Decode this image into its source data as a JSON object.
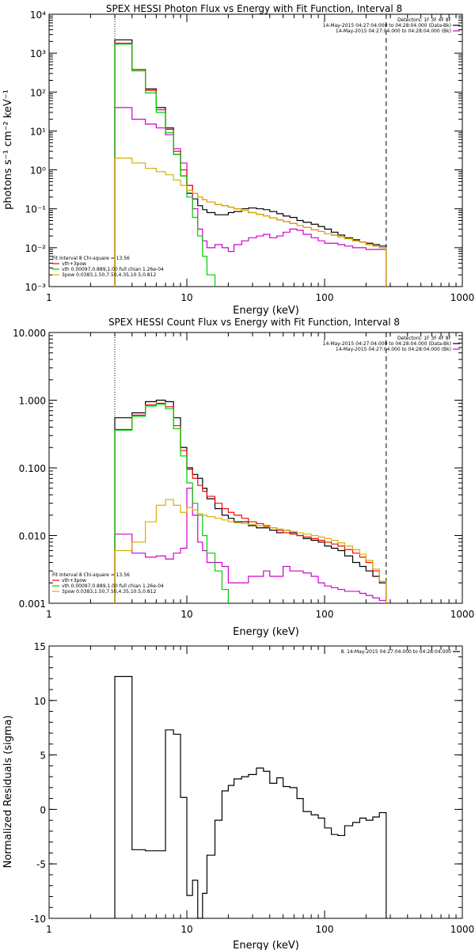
{
  "chart_data": [
    {
      "type": "line",
      "title": "SPEX HESSI Photon Flux vs Energy with Fit Function, Interval 8",
      "xlabel": "Energy (keV)",
      "ylabel": "photons s⁻¹ cm⁻² keV⁻¹",
      "xscale": "log",
      "yscale": "log",
      "xlim": [
        1,
        1000
      ],
      "ylim": [
        0.001,
        10000
      ],
      "xticks": [
        1,
        10,
        100,
        1000
      ],
      "xtick_labels": [
        "1",
        "10",
        "100",
        "1000"
      ],
      "yticks": [
        0.001,
        0.01,
        0.1,
        1,
        10,
        100,
        1000,
        10000
      ],
      "ytick_labels": [
        "10⁻³",
        "10⁻²",
        "10⁻¹",
        "10⁰",
        "10¹",
        "10²",
        "10³",
        "10⁴"
      ],
      "vlines": [
        {
          "x": 3,
          "style": "dotted"
        },
        {
          "x": 280,
          "style": "dashed"
        }
      ],
      "legend_top": [
        "Detectors: 1F 3F 4F 8F",
        "14-May-2015 04:27:04.000 to 04:28:04.000 (Data-Bk)",
        "14-May-2015 04:27:04.000 to 04:28:04.000 (Bk)"
      ],
      "legend_top_colors": [
        "",
        "#000000",
        "#d000d0"
      ],
      "legend_bottom": [
        "Fit Interval 8   Chi-square = 13.56",
        "vth+3pow",
        "vth 0.00097,0.889,1.00  full chian 1.26e-04",
        "3pow 0.0383,1.50,7.50,4.35,10.5,0.812"
      ],
      "legend_bottom_colors": [
        "",
        "#ff0000",
        "#00cc00",
        "#d4b000"
      ],
      "series": [
        {
          "role": "data-bk",
          "color": "#000000",
          "edges": [
            3,
            4,
            5,
            6,
            7,
            8,
            9,
            10,
            11,
            12,
            13,
            14,
            16,
            18,
            20,
            22,
            25,
            28,
            32,
            36,
            40,
            45,
            50,
            56,
            63,
            70,
            80,
            90,
            100,
            112,
            125,
            140,
            160,
            180,
            200,
            224,
            250,
            280
          ],
          "values": [
            2200,
            380,
            120,
            40,
            12,
            2.5,
            0.7,
            0.25,
            0.18,
            0.12,
            0.095,
            0.08,
            0.07,
            0.07,
            0.08,
            0.085,
            0.1,
            0.105,
            0.1,
            0.095,
            0.085,
            0.075,
            0.065,
            0.06,
            0.05,
            0.045,
            0.04,
            0.035,
            0.03,
            0.025,
            0.021,
            0.018,
            0.016,
            0.014,
            0.013,
            0.012,
            0.011
          ]
        },
        {
          "role": "bk",
          "color": "#d000d0",
          "edges": [
            3,
            4,
            5,
            6,
            7,
            8,
            9,
            10,
            11,
            12,
            13,
            14,
            16,
            18,
            20,
            22,
            25,
            28,
            32,
            36,
            40,
            45,
            50,
            56,
            63,
            70,
            80,
            90,
            100,
            112,
            125,
            140,
            160,
            180,
            200,
            224,
            250,
            280
          ],
          "values": [
            40,
            20,
            15,
            12,
            8,
            3.5,
            1.5,
            0.4,
            0.1,
            0.03,
            0.015,
            0.01,
            0.012,
            0.01,
            0.008,
            0.012,
            0.015,
            0.018,
            0.02,
            0.022,
            0.018,
            0.02,
            0.025,
            0.03,
            0.028,
            0.022,
            0.018,
            0.015,
            0.013,
            0.013,
            0.012,
            0.011,
            0.01,
            0.01,
            0.009,
            0.009,
            0.009
          ]
        },
        {
          "role": "vth+3pow",
          "color": "#ff0000",
          "edges": [
            3,
            4,
            5,
            6,
            7,
            8,
            9,
            10,
            11,
            12,
            13,
            14,
            16,
            18,
            20,
            22,
            25,
            28,
            32,
            36,
            40,
            45,
            50,
            56,
            63,
            70,
            80,
            90,
            100,
            112,
            125,
            140,
            160,
            180,
            200,
            224,
            250,
            280
          ],
          "values": [
            1800,
            380,
            110,
            35,
            11,
            3,
            1,
            0.4,
            0.25,
            0.2,
            0.17,
            0.15,
            0.13,
            0.12,
            0.11,
            0.1,
            0.09,
            0.08,
            0.072,
            0.065,
            0.058,
            0.052,
            0.047,
            0.042,
            0.037,
            0.033,
            0.029,
            0.026,
            0.023,
            0.021,
            0.019,
            0.017,
            0.015,
            0.014,
            0.012,
            0.011,
            0.01
          ]
        },
        {
          "role": "vth",
          "color": "#00cc00",
          "edges": [
            3,
            4,
            5,
            6,
            7,
            8,
            9,
            10,
            11,
            12,
            13,
            14,
            16
          ],
          "values": [
            1700,
            350,
            95,
            30,
            9,
            2.5,
            0.7,
            0.2,
            0.06,
            0.02,
            0.006,
            0.002
          ]
        },
        {
          "role": "3pow",
          "color": "#d4b000",
          "edges": [
            3,
            4,
            5,
            6,
            7,
            8,
            9,
            10,
            11,
            12,
            13,
            14,
            16,
            18,
            20,
            22,
            25,
            28,
            32,
            36,
            40,
            45,
            50,
            56,
            63,
            70,
            80,
            90,
            100,
            112,
            125,
            140,
            160,
            180,
            200,
            224,
            250,
            280
          ],
          "values": [
            2,
            1.5,
            1.1,
            0.9,
            0.75,
            0.55,
            0.4,
            0.3,
            0.25,
            0.2,
            0.17,
            0.15,
            0.13,
            0.12,
            0.11,
            0.1,
            0.09,
            0.08,
            0.072,
            0.065,
            0.058,
            0.052,
            0.047,
            0.042,
            0.037,
            0.033,
            0.029,
            0.026,
            0.023,
            0.021,
            0.019,
            0.017,
            0.015,
            0.014,
            0.012,
            0.011,
            0.01
          ]
        }
      ]
    },
    {
      "type": "line",
      "title": "SPEX HESSI Count Flux vs Energy with Fit Function, Interval 8",
      "xlabel": "Energy (keV)",
      "ylabel": "",
      "xscale": "log",
      "yscale": "log",
      "xlim": [
        1,
        1000
      ],
      "ylim": [
        0.001,
        10
      ],
      "xticks": [
        1,
        10,
        100,
        1000
      ],
      "xtick_labels": [
        "1",
        "10",
        "100",
        "1000"
      ],
      "yticks": [
        0.001,
        0.01,
        0.1,
        1,
        10
      ],
      "ytick_labels": [
        "0.001",
        "0.010",
        "0.100",
        "1.000",
        "10.000"
      ],
      "vlines": [
        {
          "x": 3,
          "style": "dotted"
        },
        {
          "x": 280,
          "style": "dashed"
        }
      ],
      "legend_top": [
        "Detectors: 1F 3F 4F 8F",
        "14-May-2015 04:27:04.000 to 04:28:04.000 (Data-Bk)",
        "14-May-2015 04:27:04.000 to 04:28:04.000 (Bk)"
      ],
      "legend_top_colors": [
        "",
        "#000000",
        "#d000d0"
      ],
      "legend_bottom": [
        "Fit Interval 8   Chi-square = 13.56",
        "vth+3pow",
        "vth 0.00097,0.889,1.00  full chian 1.26e-04",
        "3pow 0.0383,1.50,7.50,4.35,10.5,0.812"
      ],
      "legend_bottom_colors": [
        "",
        "#ff0000",
        "#00cc00",
        "#d4b000"
      ],
      "series": [
        {
          "role": "data-bk",
          "color": "#000000",
          "edges": [
            3,
            4,
            5,
            6,
            7,
            8,
            9,
            10,
            11,
            12,
            13,
            14,
            16,
            18,
            20,
            22,
            25,
            28,
            32,
            36,
            40,
            45,
            50,
            56,
            63,
            70,
            80,
            90,
            100,
            112,
            125,
            140,
            160,
            180,
            200,
            224,
            250,
            280
          ],
          "values": [
            0.55,
            0.65,
            0.95,
            1.0,
            0.95,
            0.55,
            0.2,
            0.1,
            0.08,
            0.07,
            0.05,
            0.035,
            0.025,
            0.02,
            0.018,
            0.016,
            0.016,
            0.014,
            0.013,
            0.013,
            0.012,
            0.011,
            0.012,
            0.011,
            0.01,
            0.009,
            0.0085,
            0.008,
            0.007,
            0.0065,
            0.006,
            0.005,
            0.004,
            0.0035,
            0.003,
            0.0025,
            0.002
          ]
        },
        {
          "role": "bk",
          "color": "#d000d0",
          "edges": [
            3,
            4,
            5,
            6,
            7,
            8,
            9,
            10,
            11,
            12,
            13,
            14,
            16,
            18,
            20,
            22,
            25,
            28,
            32,
            36,
            40,
            45,
            50,
            56,
            63,
            70,
            80,
            90,
            100,
            112,
            125,
            140,
            160,
            180,
            200,
            224,
            250,
            280
          ],
          "values": [
            0.0105,
            0.0055,
            0.0048,
            0.005,
            0.0045,
            0.0055,
            0.0065,
            0.05,
            0.02,
            0.008,
            0.006,
            0.004,
            0.004,
            0.0035,
            0.002,
            0.002,
            0.002,
            0.0025,
            0.0025,
            0.003,
            0.0025,
            0.0025,
            0.0035,
            0.003,
            0.003,
            0.0028,
            0.0025,
            0.002,
            0.0018,
            0.0017,
            0.0016,
            0.0015,
            0.0015,
            0.0014,
            0.0013,
            0.0012,
            0.0011
          ]
        },
        {
          "role": "vth+3pow",
          "color": "#ff0000",
          "edges": [
            3,
            4,
            5,
            6,
            7,
            8,
            9,
            10,
            11,
            12,
            13,
            14,
            16,
            18,
            20,
            22,
            25,
            28,
            32,
            36,
            40,
            45,
            50,
            56,
            63,
            70,
            80,
            90,
            100,
            112,
            125,
            140,
            160,
            180,
            200,
            224,
            250,
            280
          ],
          "values": [
            0.37,
            0.6,
            0.85,
            0.9,
            0.8,
            0.42,
            0.18,
            0.095,
            0.07,
            0.055,
            0.045,
            0.038,
            0.03,
            0.025,
            0.022,
            0.02,
            0.018,
            0.016,
            0.015,
            0.014,
            0.013,
            0.012,
            0.011,
            0.0105,
            0.01,
            0.0095,
            0.009,
            0.0085,
            0.008,
            0.0075,
            0.007,
            0.0062,
            0.0055,
            0.0048,
            0.004,
            0.003,
            0.0021
          ]
        },
        {
          "role": "vth",
          "color": "#00cc00",
          "edges": [
            3,
            4,
            5,
            6,
            7,
            8,
            9,
            10,
            11,
            12,
            13,
            14,
            16,
            18,
            20
          ],
          "values": [
            0.36,
            0.58,
            0.82,
            0.87,
            0.75,
            0.38,
            0.15,
            0.06,
            0.03,
            0.02,
            0.01,
            0.0055,
            0.003,
            0.0016
          ]
        },
        {
          "role": "3pow",
          "color": "#d4b000",
          "edges": [
            3,
            4,
            5,
            6,
            7,
            8,
            9,
            10,
            11,
            12,
            13,
            14,
            16,
            18,
            20,
            22,
            25,
            28,
            32,
            36,
            40,
            45,
            50,
            56,
            63,
            70,
            80,
            90,
            100,
            112,
            125,
            140,
            160,
            180,
            200,
            224,
            250,
            280
          ],
          "values": [
            0.006,
            0.008,
            0.016,
            0.028,
            0.034,
            0.028,
            0.022,
            0.026,
            0.024,
            0.021,
            0.02,
            0.019,
            0.018,
            0.017,
            0.016,
            0.0155,
            0.015,
            0.0145,
            0.014,
            0.0135,
            0.013,
            0.0125,
            0.012,
            0.0115,
            0.011,
            0.0105,
            0.01,
            0.0095,
            0.009,
            0.0085,
            0.0078,
            0.007,
            0.0062,
            0.0053,
            0.0043,
            0.0032,
            0.0021
          ]
        }
      ]
    },
    {
      "type": "line",
      "title": "",
      "xlabel": "Energy (keV)",
      "ylabel": "Normalized Residuals (sigma)",
      "xscale": "log",
      "yscale": "linear",
      "xlim": [
        1,
        1000
      ],
      "ylim": [
        -10,
        15
      ],
      "xticks": [
        1,
        10,
        100,
        1000
      ],
      "xtick_labels": [
        "1",
        "10",
        "100",
        "1000"
      ],
      "yticks": [
        -10,
        -5,
        0,
        5,
        10,
        15
      ],
      "ytick_labels": [
        "-10",
        "-5",
        "0",
        "5",
        "10",
        "15"
      ],
      "legend_top": [
        "8. 14-May-2015 04:27:04.000 to 04:28:04.000"
      ],
      "legend_top_colors": [
        "#000000"
      ],
      "series": [
        {
          "role": "residuals",
          "color": "#000000",
          "edges": [
            3,
            4,
            5,
            6,
            7,
            8,
            9,
            10,
            11,
            12,
            13,
            14,
            16,
            18,
            20,
            22,
            25,
            28,
            32,
            36,
            40,
            45,
            50,
            56,
            63,
            70,
            80,
            90,
            100,
            112,
            125,
            140,
            160,
            180,
            200,
            224,
            250,
            280
          ],
          "values": [
            12.2,
            -3.7,
            -3.8,
            -3.8,
            7.3,
            6.9,
            1.1,
            -7.9,
            -6.5,
            -10.0,
            -7.7,
            -4.2,
            -1.0,
            1.7,
            2.2,
            2.8,
            3.0,
            3.2,
            3.8,
            3.5,
            2.4,
            2.9,
            2.1,
            2.0,
            1.0,
            -0.2,
            -0.5,
            -0.8,
            -1.7,
            -2.3,
            -2.4,
            -1.5,
            -1.2,
            -0.8,
            -1.0,
            -0.7,
            -0.3
          ]
        }
      ]
    }
  ]
}
